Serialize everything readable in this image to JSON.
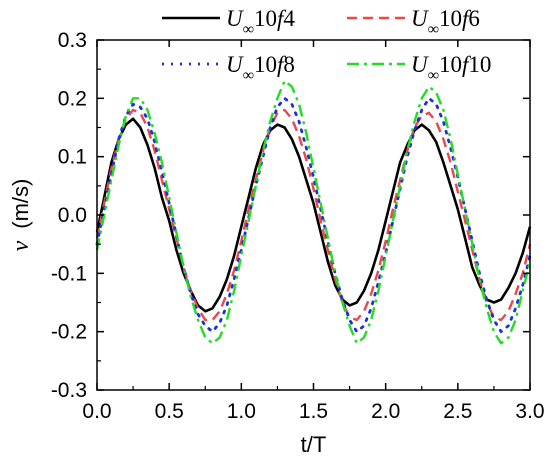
{
  "chart_data": {
    "type": "line",
    "xlabel": "t/T",
    "ylabel_var": "v",
    "ylabel_unit": "(m/s)",
    "xlim": [
      0.0,
      3.0
    ],
    "ylim": [
      -0.3,
      0.3
    ],
    "x_ticks": [
      "0.0",
      "0.5",
      "1.0",
      "1.5",
      "2.0",
      "2.5",
      "3.0"
    ],
    "y_ticks": [
      "0.3",
      "0.2",
      "0.1",
      "0.0",
      "-0.1",
      "-0.2",
      "-0.3"
    ],
    "series": [
      {
        "name": "U∞10f4",
        "legend_parts": {
          "u": "U",
          "sub": "∞",
          "num": "10",
          "f": "f",
          "n": "4"
        },
        "color": "#000000",
        "style": "solid",
        "x": [
          0.0,
          0.05,
          0.1,
          0.15,
          0.2,
          0.25,
          0.3,
          0.35,
          0.4,
          0.45,
          0.5,
          0.55,
          0.6,
          0.65,
          0.7,
          0.75,
          0.8,
          0.85,
          0.9,
          0.95,
          1.0,
          1.05,
          1.1,
          1.15,
          1.2,
          1.25,
          1.3,
          1.35,
          1.4,
          1.45,
          1.5,
          1.55,
          1.6,
          1.65,
          1.7,
          1.75,
          1.8,
          1.85,
          1.9,
          1.95,
          2.0,
          2.05,
          2.1,
          2.15,
          2.2,
          2.25,
          2.3,
          2.35,
          2.4,
          2.45,
          2.5,
          2.55,
          2.6,
          2.65,
          2.7,
          2.75,
          2.8,
          2.85,
          2.9,
          2.95,
          3.0
        ],
        "y": [
          -0.03,
          0.03,
          0.09,
          0.13,
          0.155,
          0.165,
          0.15,
          0.12,
          0.08,
          0.03,
          -0.01,
          -0.06,
          -0.1,
          -0.13,
          -0.155,
          -0.165,
          -0.16,
          -0.14,
          -0.11,
          -0.07,
          -0.02,
          0.03,
          0.08,
          0.12,
          0.145,
          0.155,
          0.15,
          0.13,
          0.1,
          0.06,
          0.02,
          -0.03,
          -0.08,
          -0.12,
          -0.145,
          -0.155,
          -0.15,
          -0.13,
          -0.1,
          -0.06,
          -0.01,
          0.04,
          0.09,
          0.12,
          0.145,
          0.155,
          0.145,
          0.125,
          0.09,
          0.05,
          0.01,
          -0.04,
          -0.09,
          -0.12,
          -0.145,
          -0.15,
          -0.145,
          -0.125,
          -0.1,
          -0.065,
          -0.02
        ]
      },
      {
        "name": "U∞10f6",
        "legend_parts": {
          "u": "U",
          "sub": "∞",
          "num": "10",
          "f": "f",
          "n": "6"
        },
        "color": "#e8484d",
        "style": "dash",
        "x": [
          0.0,
          0.05,
          0.1,
          0.15,
          0.2,
          0.25,
          0.3,
          0.35,
          0.4,
          0.45,
          0.5,
          0.55,
          0.6,
          0.65,
          0.7,
          0.75,
          0.8,
          0.85,
          0.9,
          0.95,
          1.0,
          1.05,
          1.1,
          1.15,
          1.2,
          1.25,
          1.3,
          1.35,
          1.4,
          1.45,
          1.5,
          1.55,
          1.6,
          1.65,
          1.7,
          1.75,
          1.8,
          1.85,
          1.9,
          1.95,
          2.0,
          2.05,
          2.1,
          2.15,
          2.2,
          2.25,
          2.3,
          2.35,
          2.4,
          2.45,
          2.5,
          2.55,
          2.6,
          2.65,
          2.7,
          2.75,
          2.8,
          2.85,
          2.9,
          2.95,
          3.0
        ],
        "y": [
          -0.04,
          0.02,
          0.08,
          0.13,
          0.165,
          0.18,
          0.175,
          0.15,
          0.11,
          0.06,
          0.01,
          -0.04,
          -0.09,
          -0.13,
          -0.16,
          -0.18,
          -0.18,
          -0.165,
          -0.135,
          -0.095,
          -0.045,
          0.01,
          0.06,
          0.11,
          0.15,
          0.175,
          0.18,
          0.165,
          0.135,
          0.095,
          0.045,
          -0.01,
          -0.06,
          -0.11,
          -0.15,
          -0.175,
          -0.18,
          -0.165,
          -0.135,
          -0.095,
          -0.045,
          0.01,
          0.06,
          0.11,
          0.15,
          0.17,
          0.175,
          0.16,
          0.13,
          0.09,
          0.04,
          -0.01,
          -0.06,
          -0.11,
          -0.15,
          -0.175,
          -0.18,
          -0.165,
          -0.135,
          -0.1,
          -0.05
        ]
      },
      {
        "name": "U∞10f8",
        "legend_parts": {
          "u": "U",
          "sub": "∞",
          "num": "10",
          "f": "f",
          "n": "8"
        },
        "color": "#1f2fd6",
        "style": "dot",
        "x": [
          0.0,
          0.05,
          0.1,
          0.15,
          0.2,
          0.25,
          0.3,
          0.35,
          0.4,
          0.45,
          0.5,
          0.55,
          0.6,
          0.65,
          0.7,
          0.75,
          0.8,
          0.85,
          0.9,
          0.95,
          1.0,
          1.05,
          1.1,
          1.15,
          1.2,
          1.25,
          1.3,
          1.35,
          1.4,
          1.45,
          1.5,
          1.55,
          1.6,
          1.65,
          1.7,
          1.75,
          1.8,
          1.85,
          1.9,
          1.95,
          2.0,
          2.05,
          2.1,
          2.15,
          2.2,
          2.25,
          2.3,
          2.35,
          2.4,
          2.45,
          2.5,
          2.55,
          2.6,
          2.65,
          2.7,
          2.75,
          2.8,
          2.85,
          2.9,
          2.95,
          3.0
        ],
        "y": [
          -0.05,
          0.01,
          0.07,
          0.13,
          0.17,
          0.19,
          0.185,
          0.165,
          0.125,
          0.075,
          0.02,
          -0.035,
          -0.09,
          -0.135,
          -0.17,
          -0.19,
          -0.2,
          -0.185,
          -0.155,
          -0.11,
          -0.06,
          -0.005,
          0.05,
          0.1,
          0.15,
          0.185,
          0.2,
          0.19,
          0.16,
          0.115,
          0.065,
          0.01,
          -0.045,
          -0.1,
          -0.145,
          -0.18,
          -0.2,
          -0.19,
          -0.16,
          -0.115,
          -0.065,
          -0.01,
          0.045,
          0.1,
          0.145,
          0.18,
          0.2,
          0.19,
          0.16,
          0.115,
          0.065,
          0.01,
          -0.045,
          -0.1,
          -0.145,
          -0.18,
          -0.2,
          -0.19,
          -0.16,
          -0.12,
          -0.07
        ]
      },
      {
        "name": "U∞10f10",
        "legend_parts": {
          "u": "U",
          "sub": "∞",
          "num": "10",
          "f": "f",
          "n": "10"
        },
        "color": "#22dd22",
        "style": "dashdot",
        "x": [
          0.0,
          0.05,
          0.1,
          0.15,
          0.2,
          0.25,
          0.3,
          0.35,
          0.4,
          0.45,
          0.5,
          0.55,
          0.6,
          0.65,
          0.7,
          0.75,
          0.8,
          0.85,
          0.9,
          0.95,
          1.0,
          1.05,
          1.1,
          1.15,
          1.2,
          1.25,
          1.3,
          1.35,
          1.4,
          1.45,
          1.5,
          1.55,
          1.6,
          1.65,
          1.7,
          1.75,
          1.8,
          1.85,
          1.9,
          1.95,
          2.0,
          2.05,
          2.1,
          2.15,
          2.2,
          2.25,
          2.3,
          2.35,
          2.4,
          2.45,
          2.5,
          2.55,
          2.6,
          2.65,
          2.7,
          2.75,
          2.8,
          2.85,
          2.9,
          2.95,
          3.0
        ],
        "y": [
          -0.06,
          0.0,
          0.06,
          0.12,
          0.17,
          0.2,
          0.2,
          0.18,
          0.14,
          0.09,
          0.03,
          -0.03,
          -0.09,
          -0.14,
          -0.18,
          -0.21,
          -0.22,
          -0.21,
          -0.18,
          -0.13,
          -0.07,
          -0.01,
          0.05,
          0.11,
          0.16,
          0.2,
          0.23,
          0.22,
          0.19,
          0.14,
          0.08,
          0.02,
          -0.04,
          -0.1,
          -0.15,
          -0.19,
          -0.22,
          -0.21,
          -0.18,
          -0.13,
          -0.07,
          -0.01,
          0.05,
          0.11,
          0.16,
          0.2,
          0.22,
          0.21,
          0.18,
          0.13,
          0.07,
          0.01,
          -0.05,
          -0.11,
          -0.16,
          -0.2,
          -0.22,
          -0.21,
          -0.18,
          -0.13,
          -0.08
        ]
      }
    ]
  }
}
